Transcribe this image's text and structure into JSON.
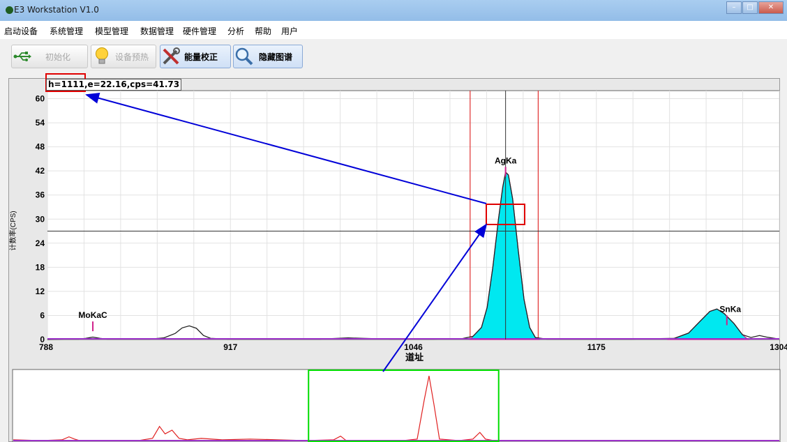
{
  "window": {
    "title": "E3 Workstation V1.0"
  },
  "menu": [
    "启动设备",
    "系统管理",
    "模型管理",
    "数据管理",
    "硬件管理",
    "分析",
    "帮助",
    "用户"
  ],
  "toolbar": {
    "init_label": "初始化",
    "preheat_label": "设备预热",
    "calibrate_label": "能量校正",
    "hide_label": "隐藏图谱"
  },
  "readout": "h=1111,e=22.16,cps=41.73",
  "chart_data": {
    "type": "line",
    "xlabel": "道址",
    "ylabel": "计数率(CPS)",
    "xlim": [
      788,
      1304
    ],
    "ylim": [
      0,
      62
    ],
    "x_ticks": [
      788,
      917,
      1046,
      1175,
      1304
    ],
    "y_ticks": [
      0,
      6,
      12,
      18,
      24,
      30,
      36,
      42,
      48,
      54,
      60
    ],
    "peaks": [
      {
        "label": "MoKaC",
        "x": 820,
        "marker_height": 4.5
      },
      {
        "label": "AgKa",
        "x": 1111,
        "marker_height": 43
      },
      {
        "label": "SnKa",
        "x": 1267,
        "marker_height": 6
      }
    ],
    "series": [
      {
        "values": [
          [
            788,
            0
          ],
          [
            800,
            0.1
          ],
          [
            810,
            0.1
          ],
          [
            815,
            0.3
          ],
          [
            820,
            0.6
          ],
          [
            825,
            0.3
          ],
          [
            830,
            0.1
          ],
          [
            860,
            0.1
          ],
          [
            870,
            0.4
          ],
          [
            878,
            1.5
          ],
          [
            883,
            2.9
          ],
          [
            888,
            3.4
          ],
          [
            893,
            2.8
          ],
          [
            898,
            1.0
          ],
          [
            903,
            0.3
          ],
          [
            915,
            0.1
          ],
          [
            940,
            0.1
          ],
          [
            980,
            0.1
          ],
          [
            1000,
            0.4
          ],
          [
            1010,
            0.3
          ],
          [
            1030,
            0.1
          ],
          [
            1060,
            0.1
          ],
          [
            1080,
            0.2
          ],
          [
            1088,
            0.8
          ],
          [
            1094,
            3
          ],
          [
            1098,
            8
          ],
          [
            1102,
            18
          ],
          [
            1106,
            30
          ],
          [
            1109,
            38
          ],
          [
            1111,
            41.7
          ],
          [
            1113,
            41
          ],
          [
            1116,
            35
          ],
          [
            1120,
            22
          ],
          [
            1124,
            10
          ],
          [
            1128,
            3
          ],
          [
            1132,
            0.5
          ],
          [
            1140,
            0.1
          ],
          [
            1200,
            0.1
          ],
          [
            1230,
            0.3
          ],
          [
            1240,
            1.6
          ],
          [
            1248,
            4.5
          ],
          [
            1255,
            7
          ],
          [
            1260,
            7.6
          ],
          [
            1265,
            6.5
          ],
          [
            1272,
            4
          ],
          [
            1278,
            1.2
          ],
          [
            1284,
            0.5
          ],
          [
            1290,
            1
          ],
          [
            1295,
            0.6
          ],
          [
            1304,
            0.1
          ]
        ]
      }
    ],
    "region_of_interest": [
      1086,
      1134
    ],
    "cursor": {
      "x": 1111,
      "y": 27
    },
    "overview": {
      "xlim": [
        0,
        1100
      ],
      "ylim": [
        0,
        90
      ],
      "window": [
        424,
        697
      ],
      "values": [
        [
          0,
          2
        ],
        [
          40,
          1
        ],
        [
          70,
          2
        ],
        [
          80,
          6
        ],
        [
          88,
          3
        ],
        [
          95,
          1
        ],
        [
          140,
          1
        ],
        [
          180,
          1
        ],
        [
          200,
          4
        ],
        [
          210,
          20
        ],
        [
          218,
          10
        ],
        [
          228,
          15
        ],
        [
          238,
          4
        ],
        [
          250,
          2
        ],
        [
          270,
          4
        ],
        [
          300,
          2
        ],
        [
          340,
          3
        ],
        [
          380,
          2
        ],
        [
          420,
          1
        ],
        [
          460,
          2
        ],
        [
          470,
          7
        ],
        [
          478,
          1
        ],
        [
          520,
          1
        ],
        [
          560,
          1
        ],
        [
          580,
          3
        ],
        [
          590,
          55
        ],
        [
          597,
          88
        ],
        [
          604,
          50
        ],
        [
          612,
          3
        ],
        [
          640,
          1
        ],
        [
          660,
          3
        ],
        [
          670,
          12
        ],
        [
          678,
          3
        ],
        [
          690,
          1
        ],
        [
          720,
          1
        ],
        [
          780,
          1
        ],
        [
          840,
          1
        ],
        [
          900,
          1
        ],
        [
          1000,
          1
        ],
        [
          1100,
          1
        ]
      ]
    }
  },
  "annotations": {
    "highlight_color": "#e00000",
    "arrow_color": "#0000d8",
    "window_color": "#00dd00"
  }
}
